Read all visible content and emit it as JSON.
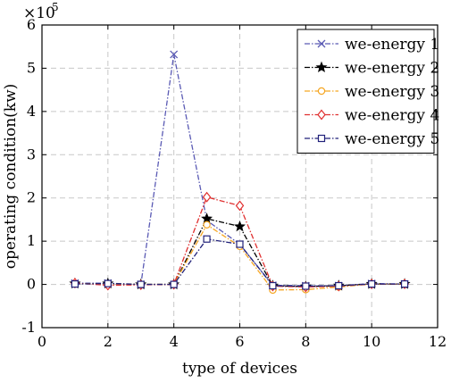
{
  "chart_data": {
    "type": "line",
    "xlabel": "type of devices",
    "ylabel": "operating condition(kw)",
    "y_multiplier_label": "×10",
    "y_multiplier_exponent": "5",
    "xlim": [
      0,
      12
    ],
    "ylim": [
      -1,
      6
    ],
    "x_ticks": [
      "0",
      "2",
      "4",
      "6",
      "8",
      "10",
      "12"
    ],
    "y_ticks": [
      "-1",
      "0",
      "1",
      "2",
      "3",
      "4",
      "5",
      "6"
    ],
    "grid": true,
    "legend_position": "top-right",
    "x": [
      1,
      2,
      3,
      4,
      5,
      6,
      7,
      8,
      9,
      10,
      11
    ],
    "series": [
      {
        "name": "we-energy 1",
        "color": "#5a5ab4",
        "marker": "x",
        "values": [
          0.03,
          0.03,
          0.0,
          5.32,
          1.48,
          0.93,
          -0.02,
          -0.03,
          -0.03,
          0.02,
          0.01
        ]
      },
      {
        "name": "we-energy 2",
        "color": "#000000",
        "marker": "star",
        "values": [
          0.02,
          0.02,
          0.0,
          0.0,
          1.52,
          1.34,
          -0.03,
          -0.05,
          -0.03,
          0.01,
          0.01
        ]
      },
      {
        "name": "we-energy 3",
        "color": "#f5a623",
        "marker": "circle",
        "values": [
          0.02,
          0.01,
          0.0,
          0.0,
          1.38,
          0.88,
          -0.13,
          -0.12,
          -0.06,
          0.01,
          0.01
        ]
      },
      {
        "name": "we-energy 4",
        "color": "#e03030",
        "marker": "diamond",
        "values": [
          0.03,
          -0.02,
          -0.01,
          0.0,
          2.02,
          1.82,
          -0.04,
          -0.06,
          -0.04,
          0.01,
          0.01
        ]
      },
      {
        "name": "we-energy 5",
        "color": "#22227a",
        "marker": "square",
        "values": [
          0.01,
          0.02,
          0.0,
          0.0,
          1.05,
          0.93,
          -0.03,
          -0.04,
          -0.03,
          0.01,
          0.01
        ]
      }
    ]
  }
}
